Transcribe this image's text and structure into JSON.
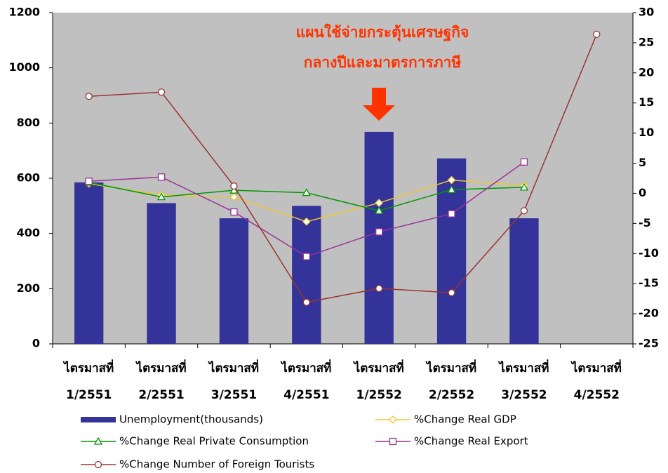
{
  "chart_data": {
    "type": "bar-line",
    "annotation": [
      "แผนใช้จ่ายกระตุ้นเศรษฐกิจ",
      "กลางปีและมาตรการภาษี"
    ],
    "categories": [
      [
        "ไตรมาสที่",
        "1/2551"
      ],
      [
        "ไตรมาสที่",
        "2/2551"
      ],
      [
        "ไตรมาสที่",
        "3/2551"
      ],
      [
        "ไตรมาสที่",
        "4/2551"
      ],
      [
        "ไตรมาสที่",
        "1/2552"
      ],
      [
        "ไตรมาสที่",
        "2/2552"
      ],
      [
        "ไตรมาสที่",
        "3/2552"
      ],
      [
        "ไตรมาสที่",
        "4/2552"
      ]
    ],
    "series": [
      {
        "name": "Unemployment(thousands)",
        "type": "bar",
        "axis": "y",
        "color": "#333399",
        "values": [
          585,
          510,
          455,
          500,
          768,
          672,
          455,
          null
        ]
      },
      {
        "name": "%Change Real GDP",
        "type": "line",
        "axis": "y2",
        "color": "#f0c830",
        "marker": "diamond",
        "values": [
          1.6,
          -0.3,
          -0.6,
          -4.7,
          -1.6,
          2.2,
          1.3,
          null
        ]
      },
      {
        "name": "%Change Real Private Consumption",
        "type": "line",
        "axis": "y2",
        "color": "#009900",
        "marker": "triangle",
        "values": [
          1.8,
          -0.6,
          0.5,
          0.1,
          -2.9,
          0.6,
          1.0,
          null
        ]
      },
      {
        "name": "%Change Real Export",
        "type": "line",
        "axis": "y2",
        "color": "#993399",
        "marker": "square",
        "values": [
          2.0,
          2.7,
          -3.1,
          -10.5,
          -6.4,
          -3.4,
          5.2,
          null
        ]
      },
      {
        "name": "%Change Number of Foreign Tourists",
        "type": "line",
        "axis": "y2",
        "color": "#993333",
        "marker": "circle",
        "values": [
          16.1,
          16.8,
          1.2,
          -18.1,
          -15.8,
          -16.5,
          -2.9,
          26.4
        ]
      }
    ],
    "ylim": [
      0,
      1200
    ],
    "yticks": [
      0,
      200,
      400,
      600,
      800,
      1000,
      1200
    ],
    "y2lim": [
      -25,
      30
    ],
    "y2ticks": [
      -25,
      -20,
      -15,
      -10,
      -5,
      0,
      5,
      10,
      15,
      20,
      25,
      30
    ],
    "plot_background": "#c0c0c0"
  }
}
